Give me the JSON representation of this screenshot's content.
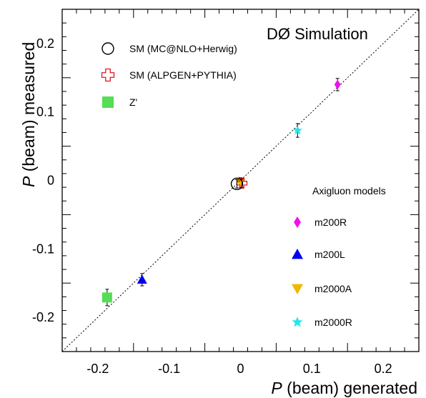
{
  "chart_data": {
    "type": "scatter",
    "annotation": "DØ Simulation",
    "xlabel": {
      "symbol": "P",
      "text": "(beam) generated"
    },
    "ylabel": {
      "symbol": "P",
      "text": "(beam) measured"
    },
    "xlim": [
      -0.25,
      0.25
    ],
    "ylim": [
      -0.25,
      0.25
    ],
    "x_ticks": [
      {
        "v": -0.2,
        "label": "-0.2"
      },
      {
        "v": -0.1,
        "label": "-0.1"
      },
      {
        "v": 0,
        "label": "0"
      },
      {
        "v": 0.1,
        "label": "0.1"
      },
      {
        "v": 0.2,
        "label": "0.2"
      }
    ],
    "y_ticks": [
      {
        "v": -0.2,
        "label": "-0.2"
      },
      {
        "v": -0.1,
        "label": "-0.1"
      },
      {
        "v": 0,
        "label": "0"
      },
      {
        "v": 0.1,
        "label": "0.1"
      },
      {
        "v": 0.2,
        "label": "0.2"
      }
    ],
    "diagonal_reference": true,
    "legend_left": [
      {
        "key": "sm_mcnlo",
        "label": "SM (MC@NLO+Herwig)"
      },
      {
        "key": "sm_alpgen",
        "label": "SM (ALPGEN+PYTHIA)"
      },
      {
        "key": "zprime",
        "label": "Z'"
      }
    ],
    "legend_right_title": "Axigluon models",
    "legend_right": [
      {
        "key": "m200R",
        "label": "m200R"
      },
      {
        "key": "m200L",
        "label": "m200L"
      },
      {
        "key": "m2000A",
        "label": "m2000A"
      },
      {
        "key": "m2000R",
        "label": "m2000R"
      }
    ],
    "series": [
      {
        "key": "sm_mcnlo",
        "name": "SM (MC@NLO+Herwig)",
        "marker": "open-circle",
        "color": "#000000",
        "x": -0.005,
        "y": -0.005,
        "yerr": 0.006
      },
      {
        "key": "sm_alpgen",
        "name": "SM (ALPGEN+PYTHIA)",
        "marker": "open-cross",
        "color": "#e8141c",
        "x": 0.002,
        "y": -0.004,
        "yerr": 0.006
      },
      {
        "key": "zprime",
        "name": "Z'",
        "marker": "square",
        "color": "#55dd55",
        "x": -0.187,
        "y": -0.171,
        "yerr": 0.012
      },
      {
        "key": "m200R",
        "name": "m200R",
        "marker": "diamond",
        "color": "#ee11ee",
        "x": 0.136,
        "y": 0.14,
        "yerr": 0.009
      },
      {
        "key": "m200L",
        "name": "m200L",
        "marker": "triangle-up",
        "color": "#0000ee",
        "x": -0.138,
        "y": -0.145,
        "yerr": 0.009
      },
      {
        "key": "m2000A",
        "name": "m2000A",
        "marker": "triangle-down",
        "color": "#f0b800",
        "x": 0.0,
        "y": -0.003,
        "yerr": 0.007
      },
      {
        "key": "m2000R",
        "name": "m2000R",
        "marker": "star",
        "color": "#22e6e6",
        "x": 0.08,
        "y": 0.073,
        "yerr": 0.01
      }
    ]
  }
}
